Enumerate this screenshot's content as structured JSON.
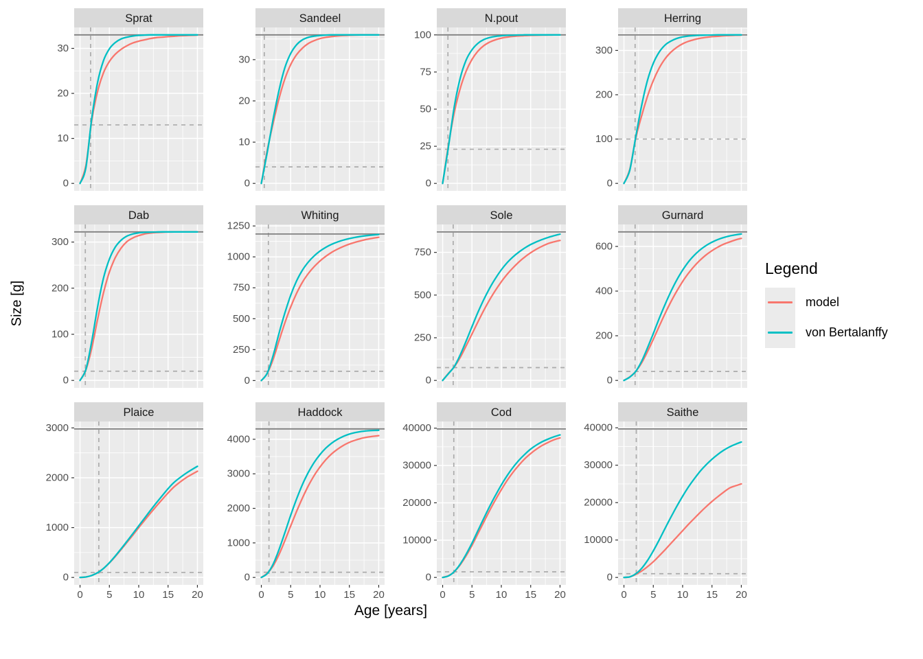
{
  "chart_data": {
    "type": "line",
    "xlabel": "Age [years]",
    "ylabel": "Size [g]",
    "x_ticks": [
      0,
      5,
      10,
      15,
      20
    ],
    "x_minor_ticks": [
      2.5,
      7.5,
      12.5,
      17.5
    ],
    "xlim": [
      -1,
      21
    ],
    "x": [
      0,
      1,
      2,
      3,
      4,
      5,
      6,
      7,
      8,
      9,
      10,
      11,
      12,
      13,
      14,
      15,
      16,
      17,
      18,
      19,
      20
    ],
    "legend": {
      "title": "Legend",
      "entries": [
        {
          "label": "model",
          "color": "#F8766D"
        },
        {
          "label": "von Bertalanffy",
          "color": "#00BFC4"
        }
      ]
    },
    "colors": {
      "model": "#F8766D",
      "von_bertalanffy": "#00BFC4",
      "panel_background": "#EBEBEB",
      "strip_background": "#D9D9D9",
      "gridline": "#FFFFFF",
      "ref_line_solid": "#7F7F7F",
      "ref_line_dashed": "#ABABAB",
      "axis_text": "#4D4D4D",
      "tick_mark": "#333333"
    },
    "facets": [
      {
        "title": "Sprat",
        "y_ticks": [
          0,
          10,
          20,
          30
        ],
        "ylim": [
          -1.65,
          34.65
        ],
        "hline_solid": 33,
        "hline_dashed": 13,
        "vline_dashed": 1.8,
        "series": [
          {
            "name": "model",
            "values": [
              0,
              4,
              14,
              20.5,
              24.6,
              27.1,
              28.7,
              29.8,
              30.6,
              31.2,
              31.6,
              31.9,
              32.2,
              32.4,
              32.5,
              32.6,
              32.7,
              32.8,
              32.85,
              32.9,
              32.95
            ]
          },
          {
            "name": "von Bertalanffy",
            "values": [
              0,
              3.5,
              14.5,
              22.5,
              27.3,
              29.9,
              31.3,
              32.1,
              32.5,
              32.75,
              32.9,
              32.95,
              33,
              33,
              33,
              33,
              33,
              33,
              33,
              33,
              33
            ]
          }
        ]
      },
      {
        "title": "Sandeel",
        "y_ticks": [
          0,
          10,
          20,
          30
        ],
        "ylim": [
          -1.8,
          37.8
        ],
        "hline_solid": 36,
        "hline_dashed": 4,
        "vline_dashed": 0.5,
        "series": [
          {
            "name": "model",
            "values": [
              0,
              8,
              14.5,
              20.5,
              25.3,
              28.8,
              31.2,
              32.8,
              33.9,
              34.6,
              35.1,
              35.4,
              35.6,
              35.75,
              35.85,
              35.9,
              35.95,
              36,
              36,
              36,
              36
            ]
          },
          {
            "name": "von Bertalanffy",
            "values": [
              0,
              7.5,
              15.5,
              22.5,
              28,
              31.5,
              33.6,
              34.8,
              35.4,
              35.7,
              35.85,
              35.95,
              36,
              36,
              36,
              36,
              36,
              36,
              36,
              36,
              36
            ]
          }
        ]
      },
      {
        "title": "N.pout",
        "y_ticks": [
          0,
          25,
          50,
          75,
          100
        ],
        "ylim": [
          -5,
          105
        ],
        "hline_solid": 100,
        "hline_dashed": 23,
        "vline_dashed": 0.9,
        "series": [
          {
            "name": "model",
            "values": [
              0,
              26,
              48,
              64,
              75.5,
              83.5,
              89,
              92.7,
              95.1,
              96.7,
              97.8,
              98.5,
              99,
              99.3,
              99.5,
              99.7,
              99.8,
              99.85,
              99.9,
              99.95,
              100
            ]
          },
          {
            "name": "von Bertalanffy",
            "values": [
              0,
              25,
              52,
              71,
              83,
              90,
              94.3,
              96.8,
              98.2,
              99,
              99.4,
              99.7,
              99.8,
              99.9,
              100,
              100,
              100,
              100,
              100,
              100,
              100
            ]
          }
        ]
      },
      {
        "title": "Herring",
        "y_ticks": [
          0,
          100,
          200,
          300
        ],
        "ylim": [
          -16.8,
          351.8
        ],
        "hline_solid": 335,
        "hline_dashed": 100,
        "vline_dashed": 1.9,
        "series": [
          {
            "name": "model",
            "values": [
              0,
              32,
              101,
              152,
              196,
              232,
              260,
              281,
              296,
              307,
              315,
              320.5,
              324.5,
              327.5,
              329.5,
              331,
              332,
              333,
              333.7,
              334.2,
              334.5
            ]
          },
          {
            "name": "von Bertalanffy",
            "values": [
              0,
              30,
              104,
              175,
              232,
              271,
              296,
              312,
              321,
              327,
              330.5,
              332.5,
              333.5,
              334.2,
              334.6,
              334.8,
              335,
              335,
              335,
              335,
              335
            ]
          }
        ]
      },
      {
        "title": "Dab",
        "y_ticks": [
          0,
          100,
          200,
          300
        ],
        "ylim": [
          -16.1,
          338.1
        ],
        "hline_solid": 322,
        "hline_dashed": 20,
        "vline_dashed": 0.9,
        "series": [
          {
            "name": "model",
            "values": [
              0,
              23,
              70,
              133,
              190,
              235,
              266,
              287,
              301,
              309,
              314,
              317.5,
              319.5,
              320.7,
              321.3,
              321.7,
              321.9,
              322,
              322,
              322,
              322
            ]
          },
          {
            "name": "von Bertalanffy",
            "values": [
              0,
              24,
              85,
              160,
              222,
              263,
              289,
              304,
              313,
              317.5,
              320,
              321,
              321.5,
              321.8,
              322,
              322,
              322,
              322,
              322,
              322,
              322
            ]
          }
        ]
      },
      {
        "title": "Whiting",
        "y_ticks": [
          0,
          250,
          500,
          750,
          1000,
          1250
        ],
        "ylim": [
          -59,
          1262
        ],
        "hline_solid": 1185,
        "hline_dashed": 75,
        "vline_dashed": 1.2,
        "series": [
          {
            "name": "model",
            "values": [
              0,
              58,
              170,
              320,
              465,
              595,
              705,
              795,
              865,
              921,
              967,
              1005,
              1037,
              1063,
              1085,
              1103,
              1118,
              1131,
              1142,
              1151,
              1159
            ]
          },
          {
            "name": "von Bertalanffy",
            "values": [
              0,
              60,
              200,
              380,
              545,
              690,
              805,
              893,
              958,
              1008,
              1047,
              1078,
              1102,
              1121,
              1136,
              1148,
              1158,
              1166,
              1172,
              1177,
              1181
            ]
          }
        ]
      },
      {
        "title": "Sole",
        "y_ticks": [
          0,
          250,
          500,
          750
        ],
        "ylim": [
          -43.5,
          913.5
        ],
        "hline_solid": 870,
        "hline_dashed": 75,
        "vline_dashed": 1.8,
        "series": [
          {
            "name": "model",
            "values": [
              0,
              42,
              80,
              135,
              202,
              272,
              342,
              410,
              472,
              528,
              578,
              622,
              660,
              694,
              723,
              748,
              769,
              787,
              802,
              812,
              820
            ]
          },
          {
            "name": "von Bertalanffy",
            "values": [
              0,
              40,
              82,
              150,
              230,
              315,
              398,
              473,
              540,
              598,
              648,
              690,
              724,
              752,
              776,
              796,
              812,
              826,
              838,
              848,
              857
            ]
          }
        ]
      },
      {
        "title": "Gurnard",
        "y_ticks": [
          0,
          200,
          400,
          600
        ],
        "ylim": [
          -33.3,
          698.3
        ],
        "hline_solid": 665,
        "hline_dashed": 40,
        "vline_dashed": 1.9,
        "series": [
          {
            "name": "model",
            "values": [
              0,
              16,
              40,
              78,
              128,
              184,
              242,
              299,
              352,
              400,
              443,
              480,
              512,
              539,
              562,
              581,
              597,
              610,
              620,
              629,
              636
            ]
          },
          {
            "name": "von Bertalanffy",
            "values": [
              0,
              15,
              40,
              85,
              145,
              210,
              277,
              340,
              398,
              450,
              494,
              531,
              561,
              585,
              604,
              619,
              631,
              640,
              647,
              652,
              656
            ]
          }
        ]
      },
      {
        "title": "Plaice",
        "y_ticks": [
          0,
          1000,
          2000,
          3000
        ],
        "ylim": [
          -149,
          3129
        ],
        "hline_solid": 2980,
        "hline_dashed": 100,
        "vline_dashed": 3.2,
        "series": [
          {
            "name": "model",
            "values": [
              0,
              10,
              40,
              95,
              180,
              290,
              420,
              560,
              705,
              850,
              1000,
              1145,
              1290,
              1430,
              1565,
              1695,
              1815,
              1910,
              1995,
              2065,
              2130
            ]
          },
          {
            "name": "von Bertalanffy",
            "values": [
              0,
              10,
              40,
              95,
              180,
              295,
              430,
              575,
              725,
              880,
              1035,
              1190,
              1345,
              1495,
              1640,
              1780,
              1905,
              2000,
              2085,
              2160,
              2230
            ]
          }
        ]
      },
      {
        "title": "Haddock",
        "y_ticks": [
          0,
          1000,
          2000,
          3000,
          4000
        ],
        "ylim": [
          -215,
          4515
        ],
        "hline_solid": 4300,
        "hline_dashed": 150,
        "vline_dashed": 1.3,
        "series": [
          {
            "name": "model",
            "values": [
              0,
              120,
              330,
              660,
              1060,
              1490,
              1910,
              2300,
              2650,
              2950,
              3200,
              3410,
              3580,
              3715,
              3825,
              3910,
              3975,
              4025,
              4060,
              4085,
              4105
            ]
          },
          {
            "name": "von Bertalanffy",
            "values": [
              0,
              110,
              380,
              800,
              1290,
              1800,
              2270,
              2690,
              3040,
              3330,
              3560,
              3745,
              3890,
              4000,
              4085,
              4150,
              4195,
              4225,
              4245,
              4255,
              4260
            ]
          }
        ]
      },
      {
        "title": "Cod",
        "y_ticks": [
          0,
          10000,
          20000,
          30000,
          40000
        ],
        "ylim": [
          -1990,
          41790
        ],
        "hline_solid": 39800,
        "hline_dashed": 1500,
        "vline_dashed": 1.9,
        "series": [
          {
            "name": "model",
            "values": [
              0,
              450,
              1550,
              3400,
              5800,
              8600,
              11700,
              14800,
              17900,
              20800,
              23500,
              26000,
              28200,
              30100,
              31800,
              33200,
              34400,
              35400,
              36200,
              36900,
              37400
            ]
          },
          {
            "name": "von Bertalanffy",
            "values": [
              0,
              400,
              1600,
              3600,
              6200,
              9200,
              12500,
              15800,
              19000,
              22000,
              24800,
              27300,
              29500,
              31400,
              33000,
              34400,
              35500,
              36400,
              37100,
              37700,
              38200
            ]
          }
        ]
      },
      {
        "title": "Saithe",
        "y_ticks": [
          0,
          10000,
          20000,
          30000,
          40000
        ],
        "ylim": [
          -1985,
          41685
        ],
        "hline_solid": 39700,
        "hline_dashed": 1000,
        "vline_dashed": 2.1,
        "series": [
          {
            "name": "model",
            "values": [
              0,
              150,
              800,
              1700,
              2850,
              4200,
              5750,
              7400,
              9100,
              10800,
              12500,
              14200,
              15800,
              17400,
              18900,
              20300,
              21600,
              22800,
              23900,
              24500,
              25000
            ]
          },
          {
            "name": "von Bertalanffy",
            "values": [
              0,
              150,
              950,
              2400,
              4500,
              7100,
              10000,
              13100,
              16100,
              19000,
              21700,
              24200,
              26400,
              28400,
              30100,
              31600,
              32900,
              34000,
              34900,
              35600,
              36200
            ]
          }
        ]
      }
    ]
  }
}
